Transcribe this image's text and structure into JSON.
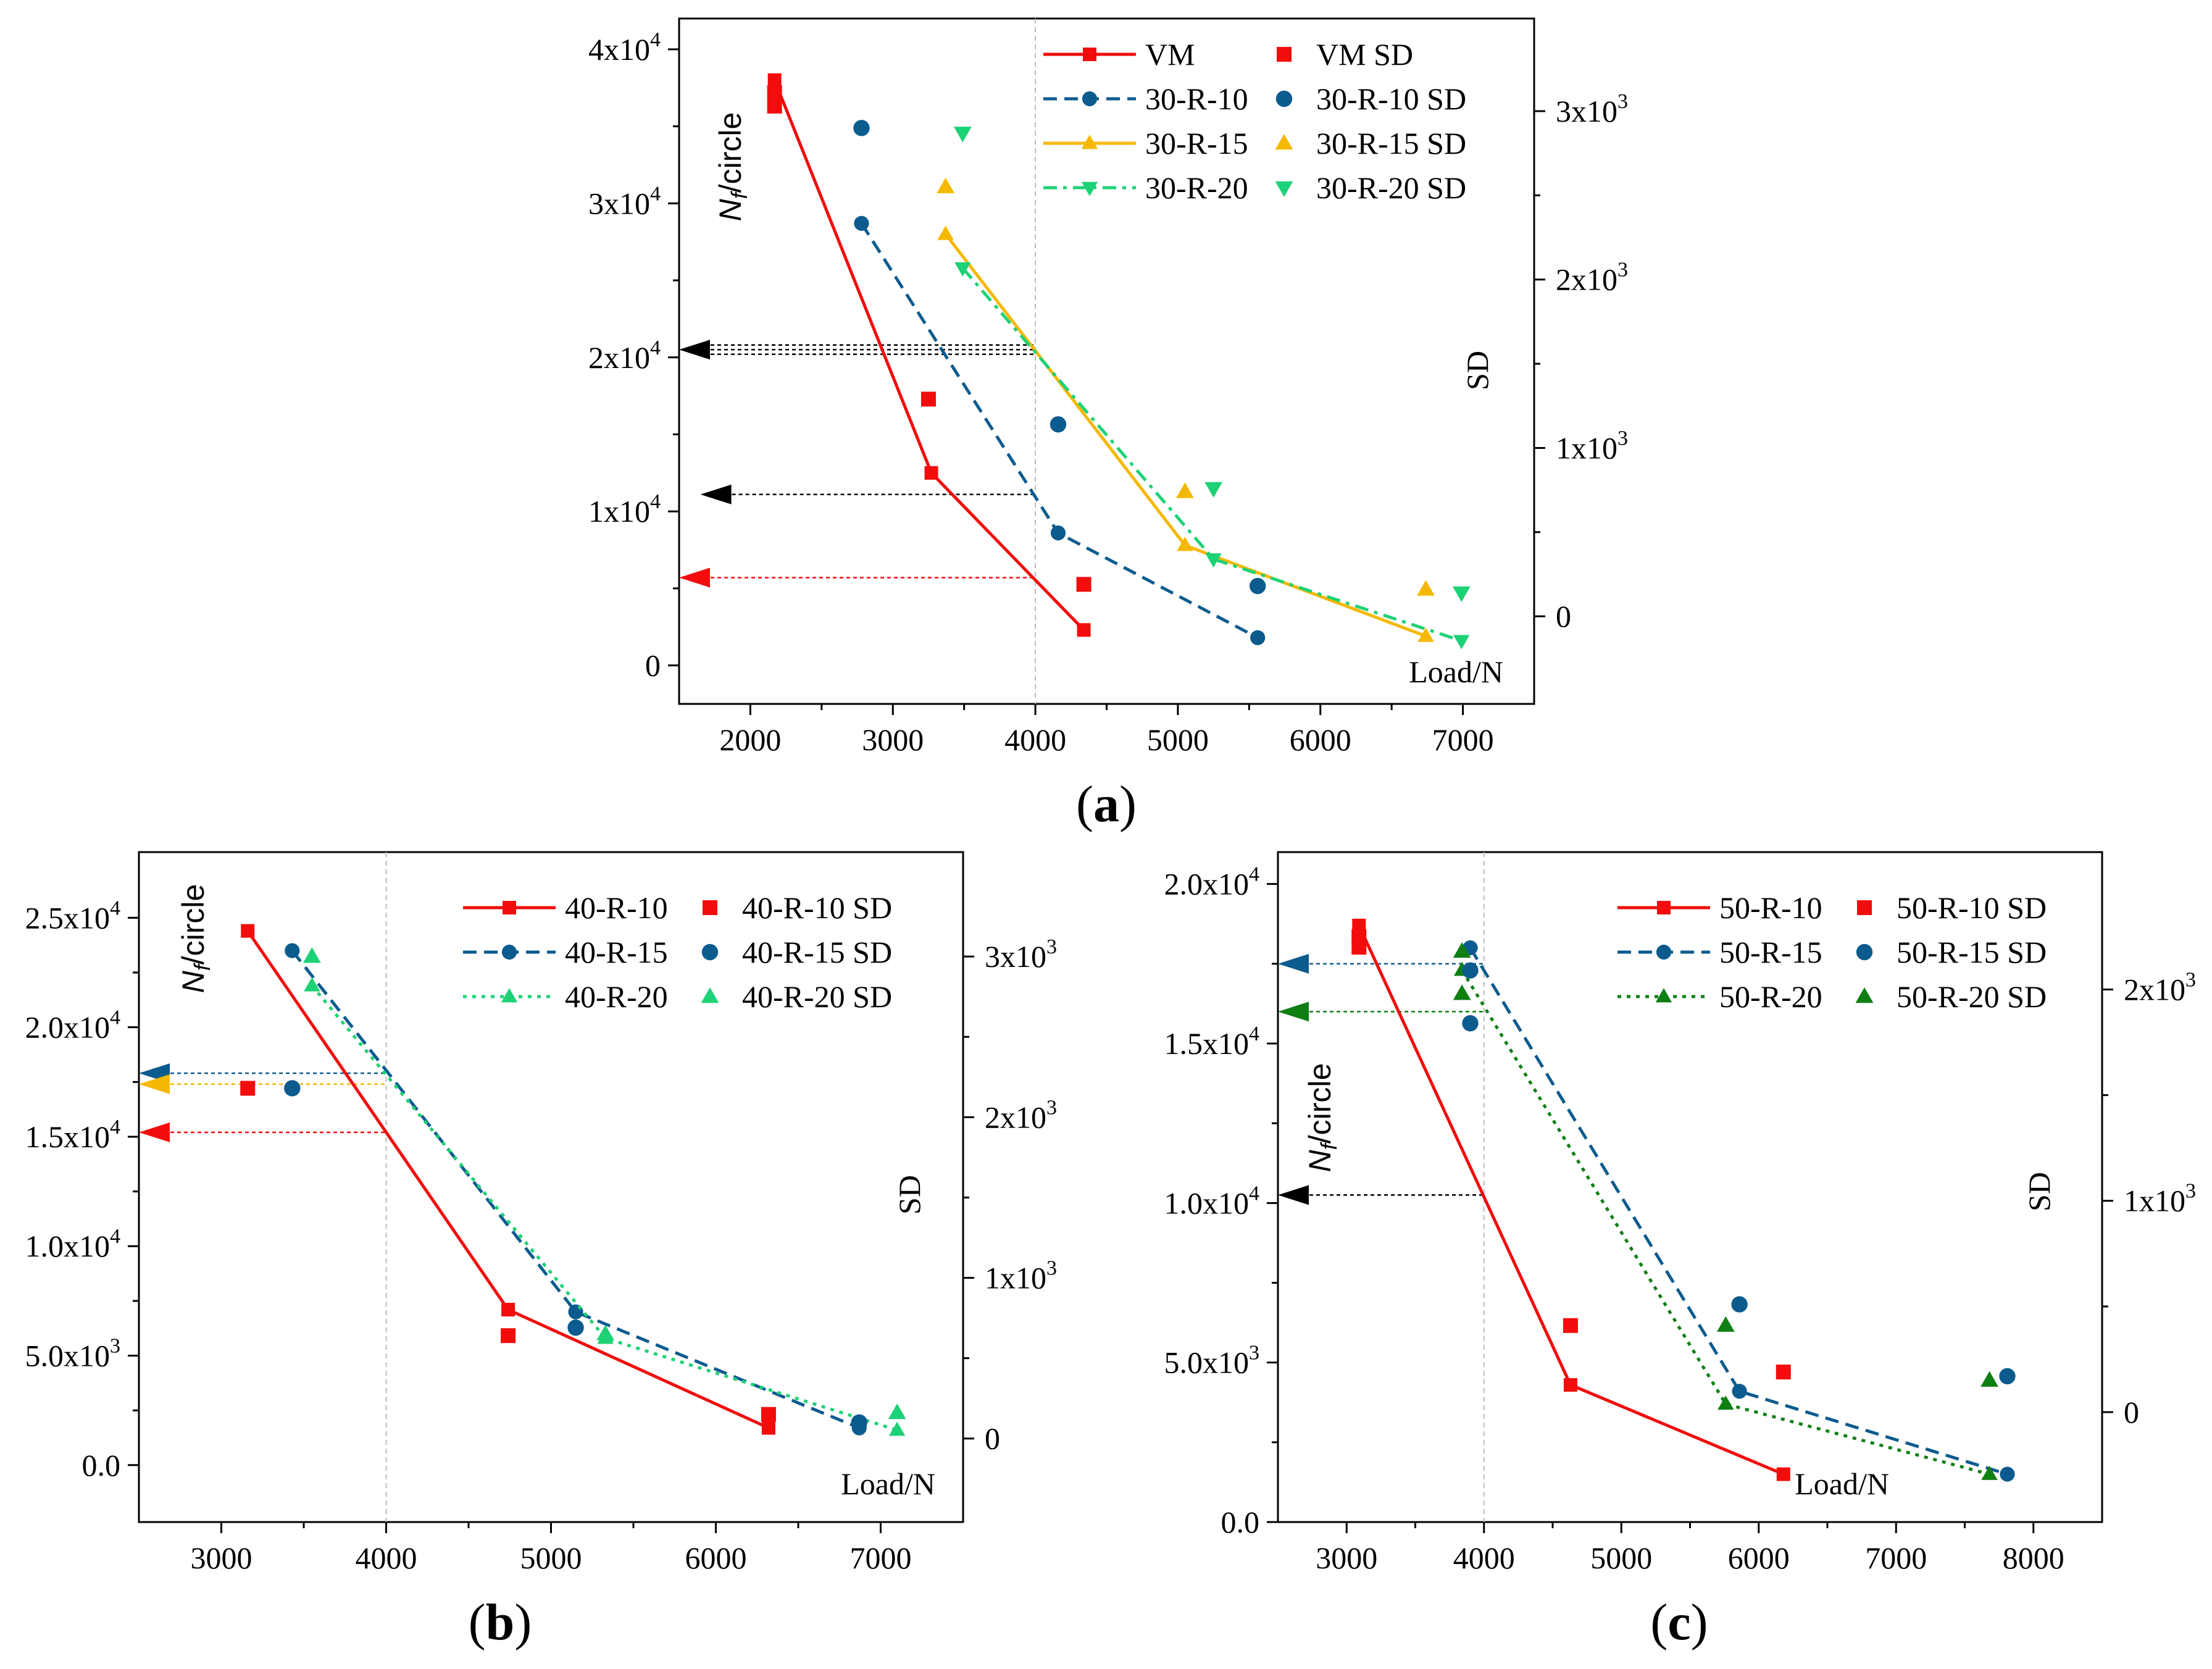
{
  "colors": {
    "red": "#f20c0c",
    "blue": "#0c5b8e",
    "yellow": "#f5b800",
    "lightgreen": "#1dd276",
    "darkgreen": "#0f7f14",
    "black": "#000000",
    "guide": "#bbbbbb"
  },
  "chart_data": [
    {
      "type": "line",
      "panel_label": "(a)",
      "panel_letter": "a",
      "xlabel": "Load/N",
      "ylabel_left_main": "N",
      "ylabel_left_sub": "f",
      "ylabel_left_rest": "/circle",
      "ylabel_right": "SD",
      "xlim": [
        1500,
        7500
      ],
      "ylim": [
        -2500,
        42000
      ],
      "y2lim": [
        -520,
        3550
      ],
      "xticks": [
        2000,
        3000,
        4000,
        5000,
        6000,
        7000
      ],
      "xtick_labels": [
        "2000",
        "3000",
        "4000",
        "5000",
        "6000",
        "7000"
      ],
      "yticks": [
        0,
        10000,
        20000,
        30000,
        40000
      ],
      "ytick_labels": [
        {
          "base": "0",
          "exp": ""
        },
        {
          "base": "1x10",
          "exp": "4"
        },
        {
          "base": "2x10",
          "exp": "4"
        },
        {
          "base": "3x10",
          "exp": "4"
        },
        {
          "base": "4x10",
          "exp": "4"
        }
      ],
      "y2ticks": [
        0,
        1000,
        2000,
        3000
      ],
      "y2tick_labels": [
        {
          "base": "0",
          "exp": ""
        },
        {
          "base": "1x10",
          "exp": "3"
        },
        {
          "base": "2x10",
          "exp": "3"
        },
        {
          "base": "3x10",
          "exp": "3"
        }
      ],
      "guide_x": 4000,
      "series": [
        {
          "name": "VM",
          "color_key": "red",
          "dash": "solid",
          "marker": "square",
          "x": [
            2170,
            3270,
            4340
          ],
          "y": [
            38000,
            12500,
            2300
          ]
        },
        {
          "name": "30-R-10",
          "color_key": "blue",
          "dash": "dashed",
          "marker": "circle",
          "x": [
            2780,
            4160,
            5560
          ],
          "y": [
            28700,
            8600,
            1800
          ]
        },
        {
          "name": "30-R-15",
          "color_key": "yellow",
          "dash": "solid",
          "marker": "triangle-up",
          "x": [
            3370,
            5050,
            6740
          ],
          "y": [
            28000,
            7800,
            1900
          ]
        },
        {
          "name": "30-R-20",
          "color_key": "lightgreen",
          "dash": "dashdot",
          "marker": "triangle-down",
          "x": [
            3490,
            5250,
            6990
          ],
          "y": [
            25800,
            6900,
            1600
          ]
        }
      ],
      "sd_series": [
        {
          "name": "VM  SD",
          "color_key": "red",
          "marker": "square",
          "x": [
            2170,
            2170,
            3250,
            4340
          ],
          "y": [
            3110,
            3030,
            1290,
            190
          ]
        },
        {
          "name": "30-R-10 SD",
          "color_key": "blue",
          "marker": "circle",
          "x": [
            2780,
            4160,
            5560
          ],
          "y": [
            2900,
            1140,
            180
          ]
        },
        {
          "name": "30-R-15 SD",
          "color_key": "yellow",
          "marker": "triangle-up",
          "x": [
            3370,
            5050,
            6740
          ],
          "y": [
            2550,
            740,
            160
          ]
        },
        {
          "name": "30-R-20 SD",
          "color_key": "lightgreen",
          "marker": "triangle-down",
          "x": [
            3490,
            5250,
            6990
          ],
          "y": [
            2870,
            760,
            140
          ]
        }
      ],
      "arrows": [
        {
          "color_key": "black",
          "x_from": 4000,
          "x_to": 1500,
          "y": 20500,
          "y_offsets": [
            -300,
            0,
            300
          ]
        },
        {
          "color_key": "black",
          "x_from": 4000,
          "x_to": 1650,
          "y": 11100,
          "y_offsets": [
            0
          ]
        },
        {
          "color_key": "red",
          "x_from": 4000,
          "x_to": 1500,
          "y": 5700,
          "y_offsets": [
            0
          ]
        }
      ]
    },
    {
      "type": "line",
      "panel_label": "(b)",
      "panel_letter": "b",
      "xlabel": "Load/N",
      "ylabel_left_main": "N",
      "ylabel_left_sub": "f",
      "ylabel_left_rest": "/circle",
      "ylabel_right": "SD",
      "xlim": [
        2500,
        7500
      ],
      "ylim": [
        -2600,
        28000
      ],
      "y2lim": [
        -520,
        3650
      ],
      "xticks": [
        3000,
        4000,
        5000,
        6000,
        7000
      ],
      "xtick_labels": [
        "3000",
        "4000",
        "5000",
        "6000",
        "7000"
      ],
      "yticks": [
        0,
        5000,
        10000,
        15000,
        20000,
        25000
      ],
      "ytick_labels": [
        {
          "base": "0.0",
          "exp": ""
        },
        {
          "base": "5.0x10",
          "exp": "3"
        },
        {
          "base": "1.0x10",
          "exp": "4"
        },
        {
          "base": "1.5x10",
          "exp": "4"
        },
        {
          "base": "2.0x10",
          "exp": "4"
        },
        {
          "base": "2.5x10",
          "exp": "4"
        }
      ],
      "y2ticks": [
        0,
        1000,
        2000,
        3000
      ],
      "y2tick_labels": [
        {
          "base": "0",
          "exp": ""
        },
        {
          "base": "1x10",
          "exp": "3"
        },
        {
          "base": "2x10",
          "exp": "3"
        },
        {
          "base": "3x10",
          "exp": "3"
        }
      ],
      "guide_x": 4000,
      "series": [
        {
          "name": "40-R-10",
          "color_key": "red",
          "dash": "solid",
          "marker": "square",
          "x": [
            3160,
            4740,
            6320
          ],
          "y": [
            24400,
            7100,
            1700
          ]
        },
        {
          "name": "40-R-15",
          "color_key": "blue",
          "dash": "dashed",
          "marker": "circle",
          "x": [
            3430,
            5150,
            6870
          ],
          "y": [
            23500,
            7000,
            1700
          ]
        },
        {
          "name": "40-R-20",
          "color_key": "lightgreen",
          "dash": "dotted",
          "marker": "triangle-up",
          "x": [
            3550,
            5330,
            7100
          ],
          "y": [
            21900,
            5800,
            1600
          ]
        }
      ],
      "sd_series": [
        {
          "name": "40-R-10 SD",
          "color_key": "red",
          "marker": "square",
          "x": [
            3160,
            4740,
            6320
          ],
          "y": [
            2180,
            640,
            150
          ]
        },
        {
          "name": "40-R-15 SD",
          "color_key": "blue",
          "marker": "circle",
          "x": [
            3430,
            5150,
            6870
          ],
          "y": [
            2180,
            690,
            100
          ]
        },
        {
          "name": "40-R-20 SD",
          "color_key": "lightgreen",
          "marker": "triangle-up",
          "x": [
            3550,
            5330,
            7100
          ],
          "y": [
            3000,
            650,
            160
          ]
        }
      ],
      "arrows": [
        {
          "color_key": "blue",
          "x_from": 4000,
          "x_to": 2500,
          "y": 17900,
          "y_offsets": [
            0
          ]
        },
        {
          "color_key": "yellow",
          "x_from": 4000,
          "x_to": 2500,
          "y": 17400,
          "y_offsets": [
            0
          ]
        },
        {
          "color_key": "red",
          "x_from": 4000,
          "x_to": 2500,
          "y": 15200,
          "y_offsets": [
            0
          ]
        }
      ]
    },
    {
      "type": "line",
      "panel_label": "(c)",
      "panel_letter": "c",
      "xlabel": "Load/N",
      "ylabel_left_main": "N",
      "ylabel_left_sub": "f",
      "ylabel_left_rest": "/circle",
      "ylabel_right": "SD",
      "xlim": [
        2500,
        8500
      ],
      "ylim": [
        0,
        21000
      ],
      "y2lim": [
        -520,
        2650
      ],
      "xticks": [
        3000,
        4000,
        5000,
        6000,
        7000,
        8000
      ],
      "xtick_labels": [
        "3000",
        "4000",
        "5000",
        "6000",
        "7000",
        "8000"
      ],
      "yticks": [
        0,
        5000,
        10000,
        15000,
        20000
      ],
      "ytick_labels": [
        {
          "base": "0.0",
          "exp": ""
        },
        {
          "base": "5.0x10",
          "exp": "3"
        },
        {
          "base": "1.0x10",
          "exp": "4"
        },
        {
          "base": "1.5x10",
          "exp": "4"
        },
        {
          "base": "2.0x10",
          "exp": "4"
        }
      ],
      "y2ticks": [
        0,
        1000,
        2000
      ],
      "y2tick_labels": [
        {
          "base": "0",
          "exp": ""
        },
        {
          "base": "1x10",
          "exp": "3"
        },
        {
          "base": "2x10",
          "exp": "3"
        }
      ],
      "guide_x": 4000,
      "series": [
        {
          "name": "50-R-10",
          "color_key": "red",
          "dash": "solid",
          "marker": "square",
          "x": [
            3090,
            4630,
            6180
          ],
          "y": [
            18700,
            4300,
            1500
          ]
        },
        {
          "name": "50-R-15",
          "color_key": "blue",
          "dash": "dashed",
          "marker": "circle",
          "x": [
            3900,
            5860,
            7810
          ],
          "y": [
            18000,
            4100,
            1500
          ]
        },
        {
          "name": "50-R-20",
          "color_key": "darkgreen",
          "dash": "dotted",
          "marker": "triangle-up",
          "x": [
            3840,
            5760,
            7680
          ],
          "y": [
            17300,
            3700,
            1500
          ]
        }
      ],
      "sd_series": [
        {
          "name": "50-R-10 SD",
          "color_key": "red",
          "marker": "square",
          "x": [
            3090,
            3090,
            4630,
            6180
          ],
          "y": [
            2250,
            2200,
            410,
            190
          ]
        },
        {
          "name": "50-R-15 SD",
          "color_key": "blue",
          "marker": "circle",
          "x": [
            3900,
            3900,
            5860,
            7810
          ],
          "y": [
            2090,
            1840,
            510,
            170
          ]
        },
        {
          "name": "50-R-20 SD",
          "color_key": "darkgreen",
          "marker": "triangle-up",
          "x": [
            3840,
            3840,
            5760,
            7680
          ],
          "y": [
            2180,
            1980,
            410,
            150
          ]
        }
      ],
      "arrows": [
        {
          "color_key": "blue",
          "x_from": 4000,
          "x_to": 2500,
          "y": 17500,
          "y_offsets": [
            0
          ]
        },
        {
          "color_key": "darkgreen",
          "x_from": 4000,
          "x_to": 2500,
          "y": 16000,
          "y_offsets": [
            0
          ]
        },
        {
          "color_key": "black",
          "x_from": 4000,
          "x_to": 2500,
          "y": 10250,
          "y_offsets": [
            0
          ]
        }
      ]
    }
  ]
}
